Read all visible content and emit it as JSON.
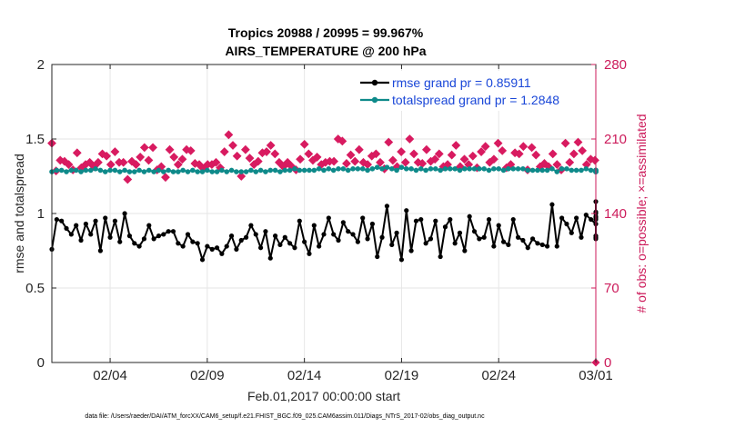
{
  "chart_data": {
    "type": "line",
    "title_line1": "Tropics 20988 / 20995 = 99.967%",
    "title_line2": "AIRS_TEMPERATURE @ 200 hPa",
    "xlabel": "Feb.01,2017 00:00:00 start",
    "ylabel_left": "rmse and totalspread",
    "ylabel_right": "# of obs: o=possible; ×=assimilated",
    "footnote": "data file: /Users/raeder/DAI/ATM_forcXX/CAM6_setup/f.e21.FHIST_BGC.f09_025.CAM6assim.011/Diags_NTrS_2017-02/obs_diag_output.nc",
    "x_tick_labels": [
      "02/04",
      "02/09",
      "02/14",
      "02/19",
      "02/24",
      "03/01"
    ],
    "x_tick_days": [
      3,
      8,
      13,
      18,
      23,
      28
    ],
    "xlim_days": [
      0,
      28
    ],
    "ylim_left": [
      0,
      2
    ],
    "y_ticks_left": [
      "0",
      "0.5",
      "1",
      "1.5",
      "2"
    ],
    "ylim_right": [
      0,
      280
    ],
    "y_ticks_right": [
      "0",
      "70",
      "140",
      "210",
      "280"
    ],
    "colors": {
      "rmse": "#000000",
      "spread": "#0e8a8a",
      "obs": "#d81b60",
      "legend_text": "#1a47d8",
      "right_axis": "#cc1a5a",
      "grid": "#e6e6e6"
    },
    "legend": {
      "rmse_label": "rmse grand pr = 0.85911",
      "spread_label": "totalspread grand pr = 1.2848",
      "placement": "top-right"
    },
    "series": [
      {
        "name": "rmse",
        "values": [
          0.76,
          0.96,
          0.95,
          0.9,
          0.86,
          0.92,
          0.82,
          0.93,
          0.86,
          0.95,
          0.75,
          0.97,
          0.84,
          0.95,
          0.81,
          1.0,
          0.85,
          0.8,
          0.78,
          0.83,
          0.92,
          0.83,
          0.85,
          0.86,
          0.88,
          0.88,
          0.8,
          0.78,
          0.86,
          0.81,
          0.8,
          0.69,
          0.78,
          0.76,
          0.77,
          0.73,
          0.78,
          0.85,
          0.76,
          0.82,
          0.84,
          0.92,
          0.86,
          0.77,
          0.88,
          0.7,
          0.85,
          0.79,
          0.84,
          0.8,
          0.77,
          0.95,
          0.81,
          0.73,
          0.92,
          0.78,
          0.86,
          0.97,
          0.86,
          0.82,
          0.94,
          0.88,
          0.86,
          0.81,
          0.97,
          0.83,
          0.93,
          0.71,
          0.84,
          1.05,
          0.79,
          0.87,
          0.69,
          1.02,
          0.75,
          0.95,
          0.96,
          0.8,
          0.83,
          0.95,
          0.71,
          0.91,
          0.96,
          0.8,
          0.87,
          0.75,
          0.98,
          0.88,
          0.83,
          0.84,
          0.96,
          0.78,
          0.92,
          0.81,
          0.79,
          0.96,
          0.84,
          0.82,
          0.77,
          0.83,
          0.8,
          0.79,
          0.78,
          1.06,
          0.78,
          0.97,
          0.93,
          0.87,
          0.97,
          0.84,
          0.99,
          0.96,
          0.93,
          0.98,
          1.08,
          0.85,
          1.0,
          0.84,
          1.01,
          0.96,
          0.83,
          0.97
        ],
        "values_days_start": 0,
        "values_days_step": 0.25
      },
      {
        "name": "totalspread",
        "values": [
          1.28,
          1.29,
          1.29,
          1.28,
          1.29,
          1.29,
          1.28,
          1.29,
          1.29,
          1.3,
          1.29,
          1.28,
          1.29,
          1.29,
          1.28,
          1.29,
          1.28,
          1.28,
          1.29,
          1.28,
          1.29,
          1.28,
          1.29,
          1.28,
          1.29,
          1.28,
          1.28,
          1.29,
          1.28,
          1.29,
          1.28,
          1.28,
          1.29,
          1.28,
          1.28,
          1.29,
          1.28,
          1.29,
          1.28,
          1.28,
          1.28,
          1.29,
          1.28,
          1.29,
          1.28,
          1.29,
          1.29,
          1.28,
          1.29,
          1.29,
          1.3,
          1.29,
          1.29,
          1.29,
          1.29,
          1.3,
          1.29,
          1.3,
          1.29,
          1.3,
          1.3,
          1.29,
          1.3,
          1.3,
          1.3,
          1.29,
          1.3,
          1.31,
          1.3,
          1.31,
          1.3,
          1.29,
          1.31,
          1.3,
          1.3,
          1.29,
          1.3,
          1.29,
          1.3,
          1.3,
          1.29,
          1.3,
          1.3,
          1.3,
          1.29,
          1.3,
          1.3,
          1.3,
          1.3,
          1.3,
          1.29,
          1.3,
          1.3,
          1.29,
          1.3,
          1.3,
          1.3,
          1.3,
          1.29,
          1.29,
          1.29,
          1.29,
          1.29,
          1.3,
          1.28,
          1.3,
          1.3,
          1.29,
          1.29,
          1.29,
          1.3,
          1.29,
          1.29,
          1.29,
          1.29,
          1.28,
          1.29,
          1.28,
          1.28,
          1.28,
          1.29,
          1.28
        ],
        "values_days_start": 0,
        "values_days_step": 0.25
      },
      {
        "name": "obs_count",
        "values": [
          206,
          180,
          190,
          189,
          186,
          181,
          197,
          183,
          186,
          188,
          184,
          188,
          196,
          194,
          186,
          198,
          188,
          188,
          172,
          189,
          186,
          193,
          202,
          190,
          202,
          181,
          184,
          174,
          200,
          193,
          186,
          191,
          200,
          199,
          187,
          186,
          182,
          186,
          186,
          188,
          183,
          198,
          214,
          204,
          194,
          175,
          200,
          192,
          186,
          189,
          197,
          198,
          204,
          196,
          188,
          184,
          188,
          184,
          181,
          191,
          205,
          196,
          190,
          193,
          186,
          188,
          189,
          189,
          210,
          208,
          187,
          195,
          189,
          200,
          188,
          186,
          194,
          196,
          188,
          182,
          207,
          190,
          184,
          198,
          188,
          210,
          196,
          188,
          187,
          200,
          189,
          191,
          196,
          184,
          186,
          195,
          204,
          184,
          191,
          186,
          194,
          183,
          198,
          203,
          188,
          191,
          206,
          199,
          183,
          186,
          197,
          196,
          203,
          181,
          202,
          195,
          184,
          187,
          184,
          196,
          186,
          181,
          206,
          188,
          196,
          207,
          199,
          186,
          191,
          190
        ],
        "values_days_start": 0,
        "values_days_step": 0.2167
      }
    ],
    "end_marker_value_right": 0
  }
}
